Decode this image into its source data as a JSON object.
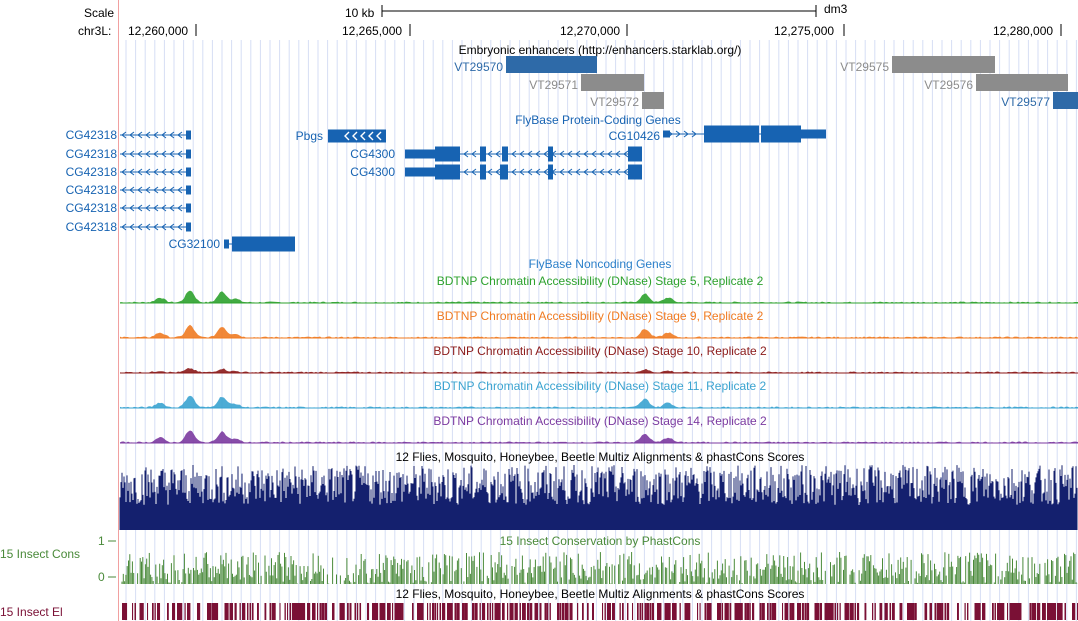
{
  "ruler": {
    "scale_label": "Scale",
    "scale_bar_label": "10 kb",
    "assembly": "dm3",
    "chrom_label": "chr3L:",
    "positions": [
      "12,260,000",
      "12,265,000",
      "12,270,000",
      "12,275,000",
      "12,280,000"
    ]
  },
  "tracks": {
    "enhancers": {
      "title": "Embryonic enhancers (http://enhancers.starklab.org/)",
      "items": [
        {
          "name": "VT29570",
          "color": "#2e6aa8"
        },
        {
          "name": "VT29571",
          "color": "#8c8c8c"
        },
        {
          "name": "VT29572",
          "color": "#8c8c8c"
        },
        {
          "name": "VT29575",
          "color": "#8c8c8c"
        },
        {
          "name": "VT29576",
          "color": "#8c8c8c"
        },
        {
          "name": "VT29577",
          "color": "#2e6aa8"
        }
      ]
    },
    "flybase_coding": {
      "title": "FlyBase Protein-Coding Genes",
      "color": "#1763b2",
      "genes": [
        "CG42318",
        "CG42318",
        "CG42318",
        "CG42318",
        "CG42318",
        "CG42318",
        "Pbgs",
        "CG4300",
        "CG4300",
        "CG10426",
        "CG32100"
      ]
    },
    "flybase_noncoding": {
      "title": "FlyBase Noncoding Genes",
      "color": "#2a7fc9"
    },
    "dnase": [
      {
        "title": "BDTNP Chromatin Accessibility (DNase) Stage 5, Replicate 2",
        "color": "#2ea22e"
      },
      {
        "title": "BDTNP Chromatin Accessibility (DNase) Stage 9, Replicate 2",
        "color": "#f07b22"
      },
      {
        "title": "BDTNP Chromatin Accessibility (DNase) Stage 10, Replicate 2",
        "color": "#8b1a1a"
      },
      {
        "title": "BDTNP Chromatin Accessibility (DNase) Stage 11, Replicate 2",
        "color": "#3aa3d0"
      },
      {
        "title": "BDTNP Chromatin Accessibility (DNase) Stage 14, Replicate 2",
        "color": "#7b3aa0"
      }
    ],
    "multiz": {
      "title": "12 Flies, Mosquito, Honeybee, Beetle Multiz Alignments & phastCons Scores",
      "color": "#14206e"
    },
    "phastcons": {
      "title": "15 Insect Conservation by PhastCons",
      "side_label": "15 Insect Cons",
      "tick_top": "1",
      "tick_bottom": "0",
      "color": "#4a8a3a"
    },
    "elements": {
      "title": "12 Flies, Mosquito, Honeybee, Beetle Multiz Alignments & phastCons Scores",
      "side_label": "15 Insect El",
      "color": "#7a1035"
    }
  }
}
